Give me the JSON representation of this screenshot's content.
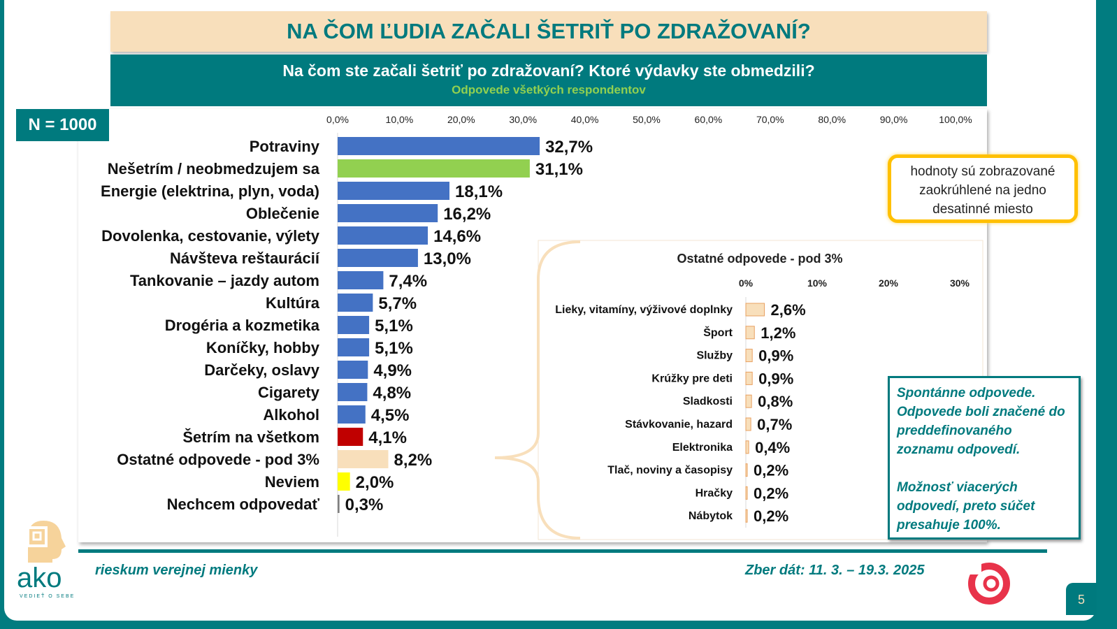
{
  "title": "NA ČOM ĽUDIA ZAČALI ŠETRIŤ PO ZDRAŽOVANÍ?",
  "question": "Na čom ste začali šetriť po zdražovaní? Ktoré výdavky ste obmedzili?",
  "subtitle": "Odpovede všetkých respondentov",
  "n_label": "N = 1000",
  "note": "hodnoty sú zobrazované zaokrúhlené na jedno desatinné miesto",
  "spontaneous_note_1": "Spontánne odpovede. Odpovede boli značené do preddefinovaného zoznamu odpovedí.",
  "spontaneous_note_2": "Možnosť viacerých odpovedí, preto súčet presahuje 100%.",
  "footer_left": "rieskum verejnej mienky",
  "footer_right": "Zber dát: 11. 3. – 19.3. 2025",
  "page_number": "5",
  "logo_text": "ako",
  "logo_tagline": "VEDIEŤ O SEBE",
  "chart_data": [
    {
      "type": "bar",
      "orientation": "horizontal",
      "xlim": [
        0,
        100
      ],
      "ticks": [
        "0,0%",
        "10,0%",
        "20,0%",
        "30,0%",
        "40,0%",
        "50,0%",
        "60,0%",
        "70,0%",
        "80,0%",
        "90,0%",
        "100,0%"
      ],
      "categories": [
        "Potraviny",
        "Nešetrím / neobmedzujem sa",
        "Energie (elektrina, plyn, voda)",
        "Oblečenie",
        "Dovolenka, cestovanie, výlety",
        "Návšteva reštaurácií",
        "Tankovanie – jazdy autom",
        "Kultúra",
        "Drogéria a kozmetika",
        "Koníčky, hobby",
        "Darčeky, oslavy",
        "Cigarety",
        "Alkohol",
        "Šetrím na všetkom",
        "Ostatné odpovede - pod 3%",
        "Neviem",
        "Nechcem odpovedať"
      ],
      "values": [
        32.7,
        31.1,
        18.1,
        16.2,
        14.6,
        13.0,
        7.4,
        5.7,
        5.1,
        5.1,
        4.9,
        4.8,
        4.5,
        4.1,
        8.2,
        2.0,
        0.3
      ],
      "labels": [
        "32,7%",
        "31,1%",
        "18,1%",
        "16,2%",
        "14,6%",
        "13,0%",
        "7,4%",
        "5,7%",
        "5,1%",
        "5,1%",
        "4,9%",
        "4,8%",
        "4,5%",
        "4,1%",
        "8,2%",
        "2,0%",
        "0,3%"
      ],
      "colors": [
        "#4472c4",
        "#92d050",
        "#4472c4",
        "#4472c4",
        "#4472c4",
        "#4472c4",
        "#4472c4",
        "#4472c4",
        "#4472c4",
        "#4472c4",
        "#4472c4",
        "#4472c4",
        "#4472c4",
        "#c00000",
        "#f8dfbb",
        "#ffff00",
        "#7f7f7f"
      ]
    },
    {
      "type": "bar",
      "orientation": "horizontal",
      "title": "Ostatné odpovede - pod 3%",
      "xlim": [
        0,
        30
      ],
      "ticks": [
        "0%",
        "10%",
        "20%",
        "30%"
      ],
      "categories": [
        "Lieky, vitamíny, výživové doplnky",
        "Šport",
        "Služby",
        "Krúžky pre deti",
        "Sladkosti",
        "Stávkovanie, hazard",
        "Elektronika",
        "Tlač, noviny a časopisy",
        "Hračky",
        "Nábytok"
      ],
      "values": [
        2.6,
        1.2,
        0.9,
        0.9,
        0.8,
        0.7,
        0.4,
        0.2,
        0.2,
        0.2
      ],
      "labels": [
        "2,6%",
        "1,2%",
        "0,9%",
        "0,9%",
        "0,8%",
        "0,7%",
        "0,4%",
        "0,2%",
        "0,2%",
        "0,2%"
      ],
      "color": "#f8dfbb",
      "border": "#e8a060"
    }
  ]
}
